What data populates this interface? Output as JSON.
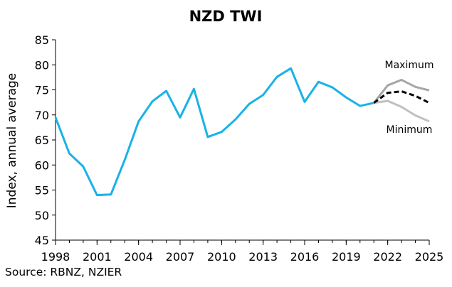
{
  "chart_data": {
    "type": "line",
    "title": "NZD TWI",
    "xlabel": "",
    "ylabel": "Index, annual average",
    "xlim": [
      1998,
      2025
    ],
    "ylim": [
      45,
      85
    ],
    "yticks": [
      45,
      50,
      55,
      60,
      65,
      70,
      75,
      80,
      85
    ],
    "xticks": [
      1998,
      2001,
      2004,
      2007,
      2010,
      2013,
      2016,
      2019,
      2022,
      2025
    ],
    "grid": false,
    "legend": "none",
    "series": [
      {
        "key": "history",
        "color": "#19b2e6",
        "style": "solid",
        "x": [
          1998,
          1999,
          2000,
          2001,
          2002,
          2003,
          2004,
          2005,
          2006,
          2007,
          2008,
          2009,
          2010,
          2011,
          2012,
          2013,
          2014,
          2015,
          2016,
          2017,
          2018,
          2019,
          2020,
          2021
        ],
        "values": [
          69.5,
          62.3,
          59.7,
          54.0,
          54.1,
          61.0,
          68.7,
          72.7,
          74.8,
          69.5,
          75.2,
          65.6,
          66.6,
          69.1,
          72.2,
          74.0,
          77.6,
          79.3,
          72.6,
          76.6,
          75.5,
          73.5,
          71.8,
          72.4
        ]
      },
      {
        "key": "maximum",
        "name": "Maximum",
        "color": "#a6a6a6",
        "style": "solid",
        "x": [
          2021,
          2022,
          2023,
          2024,
          2025
        ],
        "values": [
          72.4,
          75.9,
          77.0,
          75.6,
          74.9
        ]
      },
      {
        "key": "minimum",
        "name": "Minimum",
        "color": "#c0c0c0",
        "style": "solid",
        "x": [
          2021,
          2022,
          2023,
          2024,
          2025
        ],
        "values": [
          72.4,
          72.8,
          71.6,
          69.9,
          68.7
        ]
      },
      {
        "key": "central",
        "color": "#000000",
        "style": "dashed",
        "x": [
          2021,
          2022,
          2023,
          2024,
          2025
        ],
        "values": [
          72.4,
          74.4,
          74.7,
          73.8,
          72.4
        ]
      }
    ],
    "annotations": [
      {
        "text": "Maximum"
      },
      {
        "text": "Minimum"
      }
    ]
  },
  "source": "Source: RBNZ, NZIER"
}
